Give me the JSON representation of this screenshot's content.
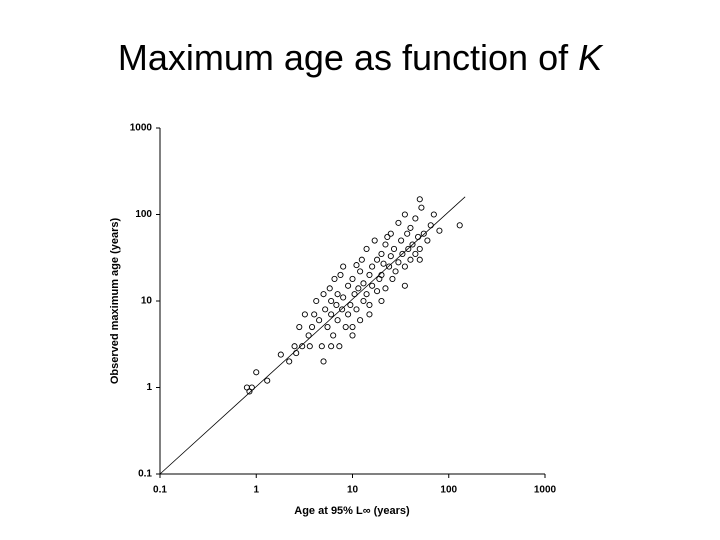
{
  "chart_data": {
    "type": "scatter",
    "title": "Maximum age as function of",
    "title_variable": "K",
    "xlabel": "Age at 95% L∞ (years)",
    "ylabel": "Observed maximum age (years)",
    "log_x": true,
    "log_y": true,
    "xlim": [
      0.1,
      1000
    ],
    "ylim": [
      0.1,
      1000
    ],
    "xticks": [
      0.1,
      1,
      10,
      100,
      1000
    ],
    "yticks": [
      0.1,
      1,
      10,
      100,
      1000
    ],
    "color": "#000000",
    "fit_line": {
      "x": [
        0.1,
        148
      ],
      "y": [
        0.1,
        160
      ]
    },
    "x": [
      0.8,
      0.85,
      0.9,
      1.0,
      1.3,
      1.8,
      2.2,
      2.5,
      2.6,
      2.8,
      3,
      3.2,
      3.5,
      3.6,
      3.8,
      4,
      4.2,
      4.5,
      4.8,
      5,
      5,
      5.2,
      5.5,
      5.8,
      6,
      6,
      6.3,
      6.5,
      6.8,
      7,
      7,
      7.3,
      7.5,
      7.8,
      8,
      8,
      8.5,
      9,
      9,
      9.5,
      10,
      10,
      10.5,
      11,
      11,
      11.5,
      12,
      12,
      12.5,
      13,
      13,
      14,
      14,
      15,
      15,
      16,
      16,
      17,
      18,
      18,
      19,
      20,
      20,
      21,
      22,
      22,
      23,
      24,
      25,
      25,
      26,
      27,
      28,
      30,
      30,
      32,
      33,
      35,
      35,
      37,
      38,
      40,
      40,
      42,
      45,
      45,
      48,
      50,
      50,
      52,
      55,
      60,
      65,
      70,
      80,
      50,
      35,
      20,
      15,
      10,
      6,
      130
    ],
    "values": [
      1,
      0.9,
      1,
      1.5,
      1.2,
      2.4,
      2,
      3,
      2.5,
      5,
      3,
      7,
      4,
      3,
      5,
      7,
      10,
      6,
      3,
      2,
      12,
      8,
      5,
      14,
      7,
      10,
      4,
      18,
      9,
      6,
      12,
      3,
      20,
      8,
      25,
      11,
      5,
      15,
      7,
      9,
      18,
      4,
      12,
      26,
      8,
      14,
      22,
      6,
      30,
      10,
      16,
      40,
      12,
      20,
      9,
      25,
      15,
      50,
      13,
      30,
      18,
      35,
      20,
      27,
      45,
      14,
      55,
      25,
      60,
      33,
      18,
      40,
      22,
      80,
      28,
      50,
      35,
      100,
      25,
      60,
      40,
      70,
      30,
      45,
      90,
      35,
      55,
      150,
      40,
      120,
      60,
      50,
      75,
      100,
      65,
      30,
      15,
      10,
      7,
      5,
      3,
      75
    ]
  }
}
